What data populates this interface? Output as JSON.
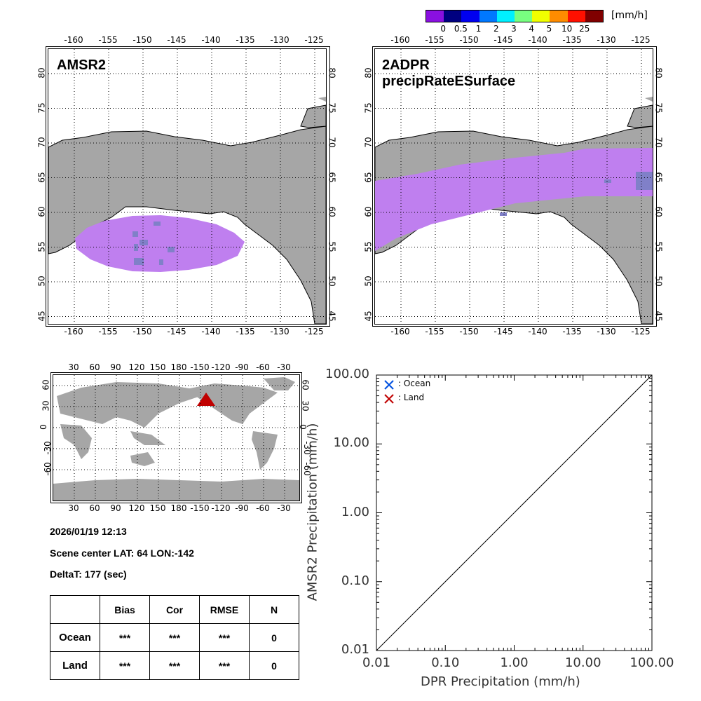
{
  "colorbar": {
    "unit": "[mm/h]",
    "colors": [
      "#8a10e0",
      "#000080",
      "#0000f0",
      "#0078ff",
      "#00f0ff",
      "#78ff80",
      "#f0ff00",
      "#ff8c00",
      "#ff1000",
      "#800000"
    ],
    "labels": [
      "0",
      "0.5",
      "1",
      "2",
      "3",
      "4",
      "5",
      "10",
      "25"
    ]
  },
  "maps": {
    "amsr2": {
      "title": "AMSR2",
      "lon_ticks": [
        "-160",
        "-155",
        "-150",
        "-145",
        "-140",
        "-135",
        "-130",
        "-125"
      ],
      "lat_ticks": [
        "80",
        "75",
        "70",
        "65",
        "60",
        "55",
        "50",
        "45"
      ]
    },
    "dpr": {
      "title": "2ADPR precipRateESurface",
      "lon_ticks": [
        "-160",
        "-155",
        "-150",
        "-145",
        "-140",
        "-135",
        "-130",
        "-125"
      ],
      "lat_ticks": [
        "80",
        "75",
        "70",
        "65",
        "60",
        "55",
        "50",
        "45"
      ]
    },
    "globe": {
      "lon_ticks": [
        "30",
        "60",
        "90",
        "120",
        "150",
        "180",
        "-150",
        "-120",
        "-90",
        "-60",
        "-30"
      ],
      "lat_ticks": [
        "60",
        "30",
        "0",
        "-30",
        "-60"
      ],
      "marker_color": "#c00000"
    },
    "land_color": "#a6a6a6",
    "precip_color": "#bf7fef",
    "precip_dark_color": "#8080c8"
  },
  "info": {
    "datetime": "2026/01/19 12:13",
    "scene_center": "Scene center LAT: 64   LON:-142",
    "deltat": "DeltaT:  177 (sec)"
  },
  "stats_table": {
    "headers": [
      "",
      "Bias",
      "Cor",
      "RMSE",
      "N"
    ],
    "rows": [
      {
        "label": "Ocean",
        "bias": "***",
        "cor": "***",
        "rmse": "***",
        "n": "0"
      },
      {
        "label": "Land",
        "bias": "***",
        "cor": "***",
        "rmse": "***",
        "n": "0"
      }
    ]
  },
  "chart_data": {
    "type": "scatter",
    "title": "",
    "xlabel": "DPR Precipitation (mm/h)",
    "ylabel": "AMSR2 Precipitation (mm/h)",
    "xscale": "log",
    "yscale": "log",
    "xlim": [
      0.01,
      100
    ],
    "ylim": [
      0.01,
      100
    ],
    "x_ticks": [
      "0.01",
      "0.10",
      "1.00",
      "10.00",
      "100.00"
    ],
    "y_ticks": [
      "0.01",
      "0.10",
      "1.00",
      "10.00",
      "100.00"
    ],
    "series": [
      {
        "name": ": Ocean",
        "color": "#0050e0",
        "marker": "x",
        "points": []
      },
      {
        "name": ": Land",
        "color": "#c00000",
        "marker": "x",
        "points": []
      }
    ],
    "reference_line": "1:1",
    "legend": "top-left"
  }
}
